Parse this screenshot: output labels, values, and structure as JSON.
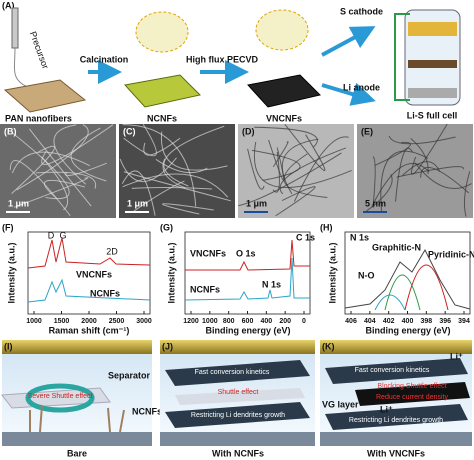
{
  "panel_a": {
    "label": "(A)",
    "precursor": "Precursor",
    "pan": "PAN  nanofibers",
    "calcination": "Calcination",
    "ncnfs": "NCNFs",
    "pecvd": "High flux PECVD",
    "vncnfs": "VNCNFs",
    "s_cathode": "S cathode",
    "li_anode": "Li anode",
    "full_cell": "Li-S full cell"
  },
  "micrographs": [
    {
      "label": "(B)",
      "scale": "1 μm"
    },
    {
      "label": "(C)",
      "scale": "1 μm"
    },
    {
      "label": "(D)",
      "scale": "1 μm"
    },
    {
      "label": "(E)",
      "scale": "5 nm"
    }
  ],
  "panel_f": {
    "label": "(F)",
    "y_label": "Intensity (a.u.)",
    "x_label": "Raman shift (cm⁻¹)",
    "peak_d": "D",
    "peak_g": "G",
    "peak_2d": "2D",
    "series_top": "VNCNFs",
    "series_bottom": "NCNFs",
    "xticks": [
      1000,
      1500,
      2000,
      2500,
      3000
    ]
  },
  "panel_g": {
    "label": "(G)",
    "y_label": "Intensity (a.u.)",
    "x_label": "Binding energy (eV)",
    "series_top": "VNCNFs",
    "o1s": "O 1s",
    "c1s": "C 1s",
    "series_bottom": "NCNFs",
    "n1s": "N 1s",
    "xticks": [
      1200,
      1000,
      800,
      600,
      400,
      200,
      0
    ]
  },
  "panel_h": {
    "label": "(H)",
    "title": "N 1s",
    "graphitic": "Graphitic-N",
    "pyridinic": "Pyridinic-N",
    "no": "N-O",
    "y_label": "Intensity (a.u.)",
    "x_label": "Binding energy (eV)",
    "xticks": [
      406,
      404,
      402,
      400,
      398,
      396,
      394
    ]
  },
  "panel_i": {
    "label": "(I)",
    "separator": "Separator",
    "shuttle": "Severe Shuttle effect",
    "ncnfs": "NCNFs",
    "caption": "Bare"
  },
  "panel_j": {
    "label": "(J)",
    "kinetics": "Fast conversion kinetics",
    "shuttle": "Shuttle effect",
    "dendrite": "Restricting Li dendrites growth",
    "caption": "With NCNFs"
  },
  "panel_k": {
    "label": "(K)",
    "li_top": "Li⁺",
    "kinetics": "Fast conversion kinetics",
    "blocking": "Blocking Shuttle effect",
    "current": "Reduce current density",
    "vg": "VG layer",
    "li_bottom": "Li⁺",
    "dendrite": "Restricting Li dendrites growth",
    "caption": "With VNCNFs"
  }
}
